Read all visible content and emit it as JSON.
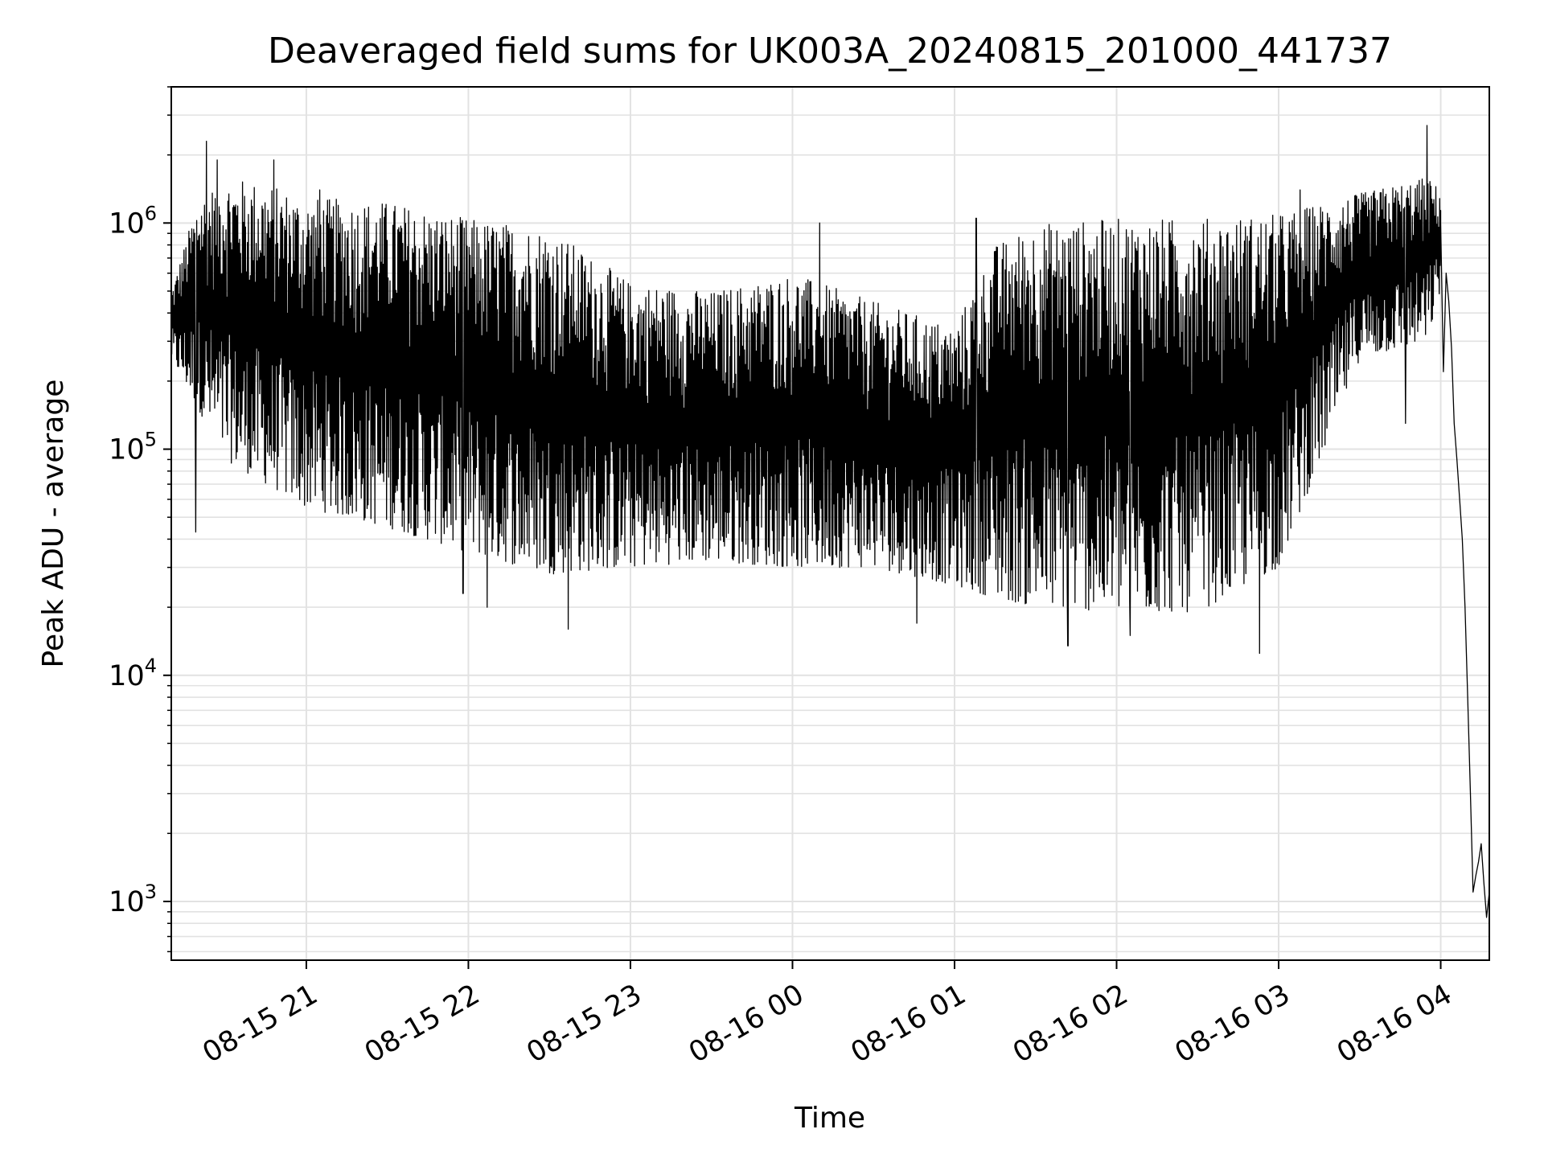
{
  "chart_data": {
    "type": "line",
    "title": "Deaveraged field sums for UK003A_20240815_201000_441737",
    "xlabel": "Time",
    "ylabel": "Peak ADU - average",
    "yscale": "log",
    "xlim": [
      "2024-08-15 20:10",
      "2024-08-16 04:18"
    ],
    "ylim": [
      550,
      4000000
    ],
    "grid": true,
    "x_ticks": [
      {
        "value": "2024-08-15 21:00",
        "label": "08-15 21"
      },
      {
        "value": "2024-08-15 22:00",
        "label": "08-15 22"
      },
      {
        "value": "2024-08-15 23:00",
        "label": "08-15 23"
      },
      {
        "value": "2024-08-16 00:00",
        "label": "08-16 00"
      },
      {
        "value": "2024-08-16 01:00",
        "label": "08-16 01"
      },
      {
        "value": "2024-08-16 02:00",
        "label": "08-16 02"
      },
      {
        "value": "2024-08-16 03:00",
        "label": "08-16 03"
      },
      {
        "value": "2024-08-16 04:00",
        "label": "08-16 04"
      }
    ],
    "y_ticks": [
      {
        "value": 1000,
        "base": "10",
        "exp": "3"
      },
      {
        "value": 10000,
        "base": "10",
        "exp": "4"
      },
      {
        "value": 100000,
        "base": "10",
        "exp": "5"
      },
      {
        "value": 1000000,
        "base": "10",
        "exp": "6"
      }
    ],
    "series": [
      {
        "color": "#000000",
        "envelope": [
          {
            "t": "2024-08-15 20:10",
            "high": 500000,
            "low": 250000
          },
          {
            "t": "2024-08-15 20:20",
            "high": 1300000,
            "low": 150000
          },
          {
            "t": "2024-08-15 20:30",
            "high": 1600000,
            "low": 90000
          },
          {
            "t": "2024-08-15 20:45",
            "high": 1500000,
            "low": 70000
          },
          {
            "t": "2024-08-15 21:00",
            "high": 1300000,
            "low": 55000
          },
          {
            "t": "2024-08-15 21:30",
            "high": 1250000,
            "low": 45000
          },
          {
            "t": "2024-08-15 22:00",
            "high": 1050000,
            "low": 35000
          },
          {
            "t": "2024-08-15 22:30",
            "high": 950000,
            "low": 28000
          },
          {
            "t": "2024-08-15 23:00",
            "high": 550000,
            "low": 30000
          },
          {
            "t": "2024-08-15 23:30",
            "high": 500000,
            "low": 32000
          },
          {
            "t": "2024-08-16 00:00",
            "high": 600000,
            "low": 30000
          },
          {
            "t": "2024-08-16 00:30",
            "high": 450000,
            "low": 30000
          },
          {
            "t": "2024-08-16 01:00",
            "high": 350000,
            "low": 25000
          },
          {
            "t": "2024-08-16 01:15",
            "high": 800000,
            "low": 22000
          },
          {
            "t": "2024-08-16 01:30",
            "high": 1000000,
            "low": 20000
          },
          {
            "t": "2024-08-16 02:00",
            "high": 1050000,
            "low": 19000
          },
          {
            "t": "2024-08-16 02:30",
            "high": 1050000,
            "low": 19000
          },
          {
            "t": "2024-08-16 03:00",
            "high": 1100000,
            "low": 30000
          },
          {
            "t": "2024-08-16 03:30",
            "high": 1350000,
            "low": 250000
          },
          {
            "t": "2024-08-16 03:55",
            "high": 1600000,
            "low": 300000
          },
          {
            "t": "2024-08-16 04:00",
            "high": 1400000,
            "low": 500000
          }
        ],
        "spikes": [
          {
            "t": "2024-08-15 20:19",
            "value": 43000
          },
          {
            "t": "2024-08-15 20:23",
            "value": 2300000
          },
          {
            "t": "2024-08-15 20:27",
            "value": 1900000
          },
          {
            "t": "2024-08-15 20:48",
            "value": 1900000
          },
          {
            "t": "2024-08-15 21:05",
            "value": 1400000
          },
          {
            "t": "2024-08-15 21:58",
            "value": 23000
          },
          {
            "t": "2024-08-15 22:07",
            "value": 20000
          },
          {
            "t": "2024-08-15 22:37",
            "value": 16000
          },
          {
            "t": "2024-08-16 00:10",
            "value": 1000000
          },
          {
            "t": "2024-08-16 00:46",
            "value": 17000
          },
          {
            "t": "2024-08-16 01:08",
            "value": 1050000
          },
          {
            "t": "2024-08-16 01:42",
            "value": 13500
          },
          {
            "t": "2024-08-16 02:05",
            "value": 15000
          },
          {
            "t": "2024-08-16 02:53",
            "value": 12500
          },
          {
            "t": "2024-08-16 03:08",
            "value": 1400000
          },
          {
            "t": "2024-08-16 03:47",
            "value": 130000
          },
          {
            "t": "2024-08-16 03:55",
            "value": 2700000
          }
        ],
        "tail": [
          {
            "t": "2024-08-16 04:00",
            "value": 1000000
          },
          {
            "t": "2024-08-16 04:01",
            "value": 220000
          },
          {
            "t": "2024-08-16 04:02",
            "value": 600000
          },
          {
            "t": "2024-08-16 04:03",
            "value": 450000
          },
          {
            "t": "2024-08-16 04:04",
            "value": 280000
          },
          {
            "t": "2024-08-16 04:05",
            "value": 130000
          },
          {
            "t": "2024-08-16 04:06",
            "value": 90000
          },
          {
            "t": "2024-08-16 04:07",
            "value": 60000
          },
          {
            "t": "2024-08-16 04:08",
            "value": 40000
          },
          {
            "t": "2024-08-16 04:09",
            "value": 20000
          },
          {
            "t": "2024-08-16 04:10",
            "value": 8000
          },
          {
            "t": "2024-08-16 04:11",
            "value": 3000
          },
          {
            "t": "2024-08-16 04:12",
            "value": 1100
          },
          {
            "t": "2024-08-16 04:13",
            "value": 1300
          },
          {
            "t": "2024-08-16 04:14",
            "value": 1500
          },
          {
            "t": "2024-08-16 04:15",
            "value": 1800
          },
          {
            "t": "2024-08-16 04:16",
            "value": 1200
          },
          {
            "t": "2024-08-16 04:17",
            "value": 850
          },
          {
            "t": "2024-08-16 04:18",
            "value": 1100
          }
        ]
      }
    ]
  }
}
